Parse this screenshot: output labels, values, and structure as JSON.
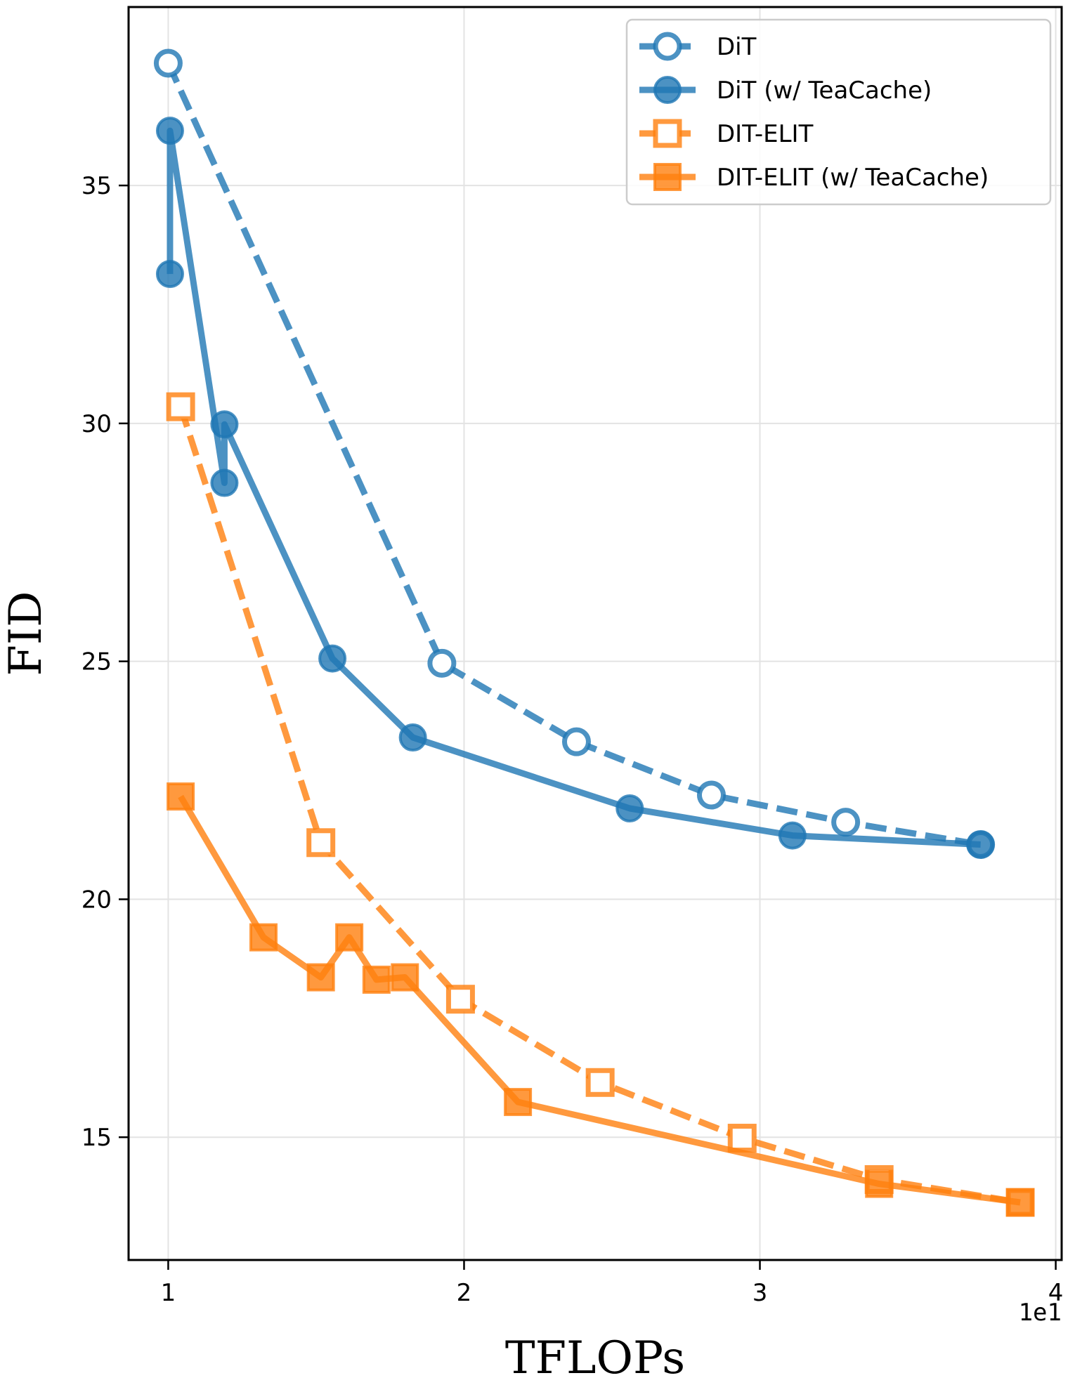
{
  "chart_data": {
    "type": "line",
    "title": "",
    "xlabel": "TFLOPs",
    "ylabel": "FID",
    "x_offset_label": "1e1",
    "xlim": [
      8.66,
      40.2
    ],
    "ylim": [
      12.42,
      38.75
    ],
    "xticks": [
      10,
      20,
      30,
      40
    ],
    "xtick_labels": [
      "1",
      "2",
      "3",
      "4"
    ],
    "yticks": [
      15,
      20,
      25,
      30,
      35
    ],
    "ytick_labels": [
      "15",
      "20",
      "25",
      "30",
      "35"
    ],
    "grid": true,
    "legend_position": "top-right",
    "series": [
      {
        "name": "DiT",
        "color": "#1f77b4",
        "linestyle": "dashed",
        "marker": "circle-open",
        "x": [
          10.0,
          19.25,
          23.8,
          28.36,
          32.9,
          37.46
        ],
        "y": [
          37.57,
          24.96,
          23.31,
          22.19,
          21.62,
          21.15
        ]
      },
      {
        "name": "DiT (w/ TeaCache)",
        "color": "#1f77b4",
        "linestyle": "solid",
        "marker": "circle-filled",
        "x": [
          10.06,
          10.06,
          11.9,
          11.9,
          15.55,
          18.27,
          25.6,
          31.1,
          37.46
        ],
        "y": [
          33.14,
          36.15,
          28.75,
          29.98,
          25.06,
          23.4,
          21.91,
          21.34,
          21.15
        ]
      },
      {
        "name": "DIT-ELIT",
        "color": "#ff7f0e",
        "linestyle": "dashed",
        "marker": "square-open",
        "x": [
          10.42,
          15.16,
          19.88,
          24.6,
          29.4,
          34.03,
          38.8
        ],
        "y": [
          30.35,
          21.19,
          17.9,
          16.15,
          14.98,
          14.11,
          13.63
        ]
      },
      {
        "name": "DIT-ELIT (w/ TeaCache)",
        "color": "#ff7f0e",
        "linestyle": "solid",
        "marker": "square-filled",
        "x": [
          10.42,
          13.22,
          15.16,
          16.12,
          17.04,
          18.0,
          21.82,
          34.03,
          38.8
        ],
        "y": [
          22.16,
          19.2,
          18.36,
          19.2,
          18.31,
          18.36,
          15.74,
          14.02,
          13.63
        ]
      }
    ]
  }
}
